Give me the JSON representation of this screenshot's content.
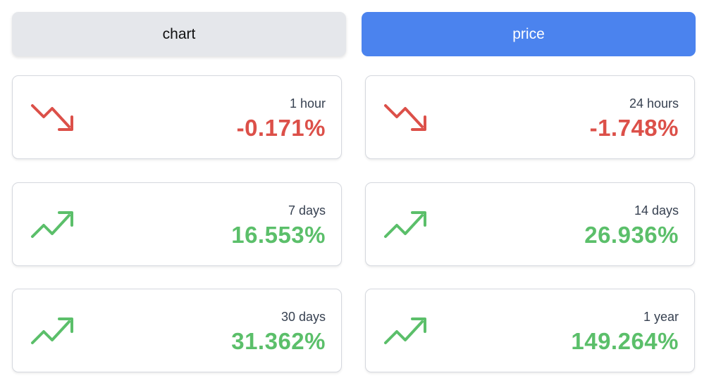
{
  "tabs": {
    "chart_label": "chart",
    "price_label": "price",
    "active": "price",
    "active_color": "#4b83ee"
  },
  "colors": {
    "negative": "#dc5049",
    "positive": "#5bbf6a"
  },
  "cards": [
    {
      "period": "1 hour",
      "value": "-0.171%",
      "trend": "down",
      "icon": "trend-down-icon"
    },
    {
      "period": "24 hours",
      "value": "-1.748%",
      "trend": "down",
      "icon": "trend-down-icon"
    },
    {
      "period": "7 days",
      "value": "16.553%",
      "trend": "up",
      "icon": "trend-up-icon"
    },
    {
      "period": "14 days",
      "value": "26.936%",
      "trend": "up",
      "icon": "trend-up-icon"
    },
    {
      "period": "30 days",
      "value": "31.362%",
      "trend": "up",
      "icon": "trend-up-icon"
    },
    {
      "period": "1 year",
      "value": "149.264%",
      "trend": "up",
      "icon": "trend-up-icon"
    }
  ]
}
